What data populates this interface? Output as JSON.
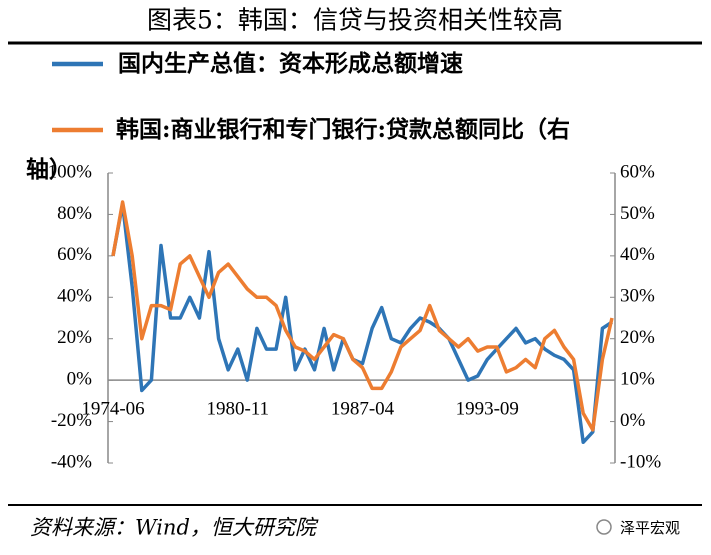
{
  "chart_data": {
    "type": "line",
    "title": "图表5：韩国：信贷与投资相关性较高",
    "source": "资料来源：Wind，恒大研究院",
    "watermark": "泽平宏观",
    "categories": [
      "1974-06",
      null,
      null,
      null,
      null,
      null,
      null,
      null,
      null,
      null,
      null,
      null,
      null,
      "1980-11",
      null,
      null,
      null,
      null,
      null,
      null,
      null,
      null,
      null,
      null,
      null,
      null,
      "1987-04",
      null,
      null,
      null,
      null,
      null,
      null,
      null,
      null,
      null,
      null,
      null,
      null,
      "1993-09",
      null,
      null,
      null,
      null,
      null,
      null,
      null,
      null,
      null,
      null,
      null,
      null,
      null
    ],
    "series": [
      {
        "name": "国内生产总值：资本形成总额增速",
        "color": "#2e75b6",
        "values": [
          60,
          85,
          45,
          -5,
          0,
          65,
          30,
          30,
          40,
          30,
          62,
          20,
          5,
          15,
          0,
          25,
          15,
          15,
          40,
          5,
          15,
          5,
          25,
          5,
          20,
          10,
          8,
          25,
          35,
          20,
          18,
          25,
          30,
          28,
          25,
          20,
          10,
          0,
          2,
          10,
          15,
          20,
          25,
          18,
          20,
          15,
          12,
          10,
          5,
          -30,
          -25,
          25,
          28
        ]
      },
      {
        "name": "韩国:商业银行和专门银行:贷款总额同比（右轴）",
        "color": "#ed7d31",
        "axis": "y2",
        "values": [
          40,
          53,
          40,
          20,
          28,
          28,
          27,
          38,
          40,
          35,
          30,
          36,
          38,
          35,
          32,
          30,
          30,
          28,
          22,
          18,
          17,
          15,
          18,
          21,
          20,
          15,
          13,
          8,
          8,
          12,
          18,
          20,
          22,
          28,
          22,
          20,
          18,
          20,
          17,
          18,
          18,
          12,
          13,
          15,
          13,
          20,
          22,
          18,
          15,
          2,
          -2,
          15,
          25
        ]
      }
    ],
    "ylim": [
      -40,
      100
    ],
    "yticks": [
      {
        "value": -40,
        "label": "-40%"
      },
      {
        "value": -20,
        "label": "-20%"
      },
      {
        "value": 0,
        "label": "0%"
      },
      {
        "value": 20,
        "label": "20%"
      },
      {
        "value": 40,
        "label": "40%"
      },
      {
        "value": 60,
        "label": "60%"
      },
      {
        "value": 80,
        "label": "80%"
      },
      {
        "value": 100,
        "label": "100%"
      }
    ],
    "y2lim": [
      -10,
      60
    ],
    "y2ticks": [
      {
        "value": -10,
        "label": "-10%"
      },
      {
        "value": 0,
        "label": "0%"
      },
      {
        "value": 10,
        "label": "10%"
      },
      {
        "value": 20,
        "label": "20%"
      },
      {
        "value": 30,
        "label": "30%"
      },
      {
        "value": 40,
        "label": "40%"
      },
      {
        "value": 50,
        "label": "50%"
      },
      {
        "value": 60,
        "label": "60%"
      }
    ],
    "grid": false
  }
}
